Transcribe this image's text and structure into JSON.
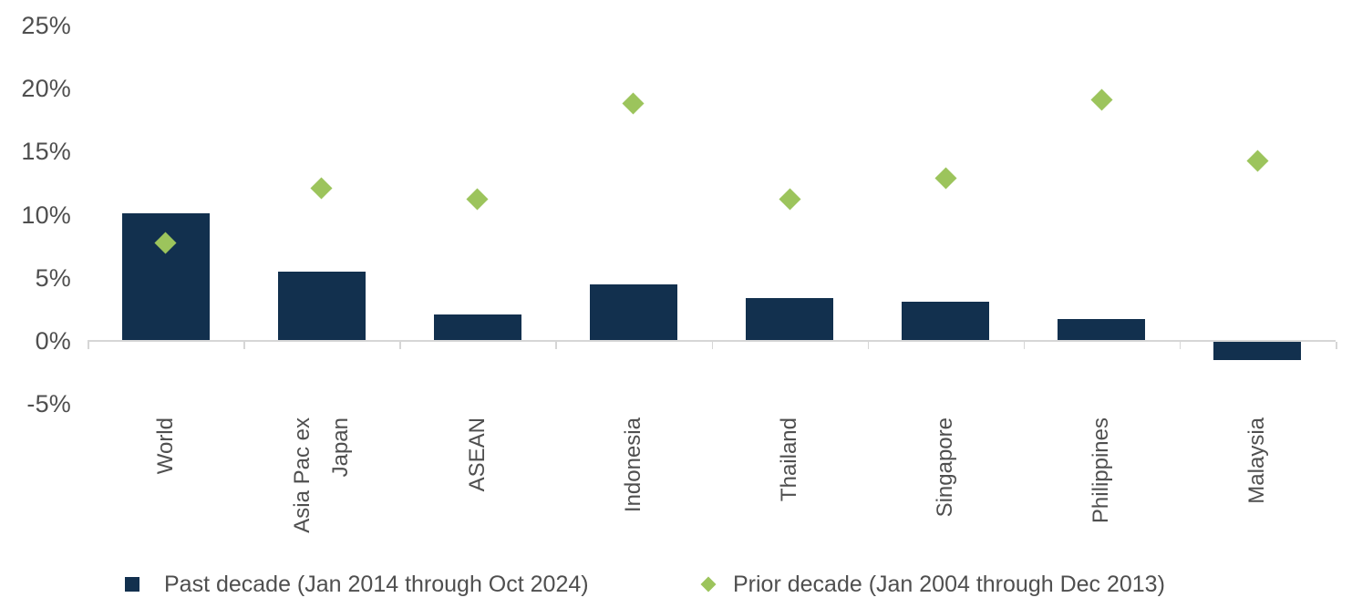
{
  "chart_data": {
    "type": "bar",
    "combo": "bar series + diamond scatter overlay",
    "title": "",
    "categories": [
      "World",
      "Asia Pac ex Japan",
      "ASEAN",
      "Indonesia",
      "Thailand",
      "Singapore",
      "Philippines",
      "Malaysia"
    ],
    "categories_display": [
      [
        "World"
      ],
      [
        "Asia Pac ex",
        "Japan"
      ],
      [
        "ASEAN"
      ],
      [
        "Indonesia"
      ],
      [
        "Thailand"
      ],
      [
        "Singapore"
      ],
      [
        "Philippines"
      ],
      [
        "Malaysia"
      ]
    ],
    "series": [
      {
        "name": "Past decade (Jan 2014 through Oct 2024)",
        "type": "bar",
        "marker": "square",
        "color": "#12304e",
        "values": [
          10.1,
          5.5,
          2.1,
          4.5,
          3.4,
          3.1,
          1.7,
          -1.5
        ]
      },
      {
        "name": "Prior decade (Jan 2004 through Dec 2013)",
        "type": "scatter",
        "marker": "diamond",
        "color": "#9cc45c",
        "values": [
          7.8,
          12.1,
          11.2,
          18.8,
          11.2,
          12.9,
          19.1,
          14.3
        ]
      }
    ],
    "y_axis": {
      "unit": "%",
      "min": -5,
      "max": 25,
      "tick_labels": [
        "25%",
        "20%",
        "15%",
        "10%",
        "5%",
        "0%",
        "-5%"
      ],
      "tick_values": [
        25,
        20,
        15,
        10,
        5,
        0,
        -5
      ]
    },
    "x_axis": {
      "baseline_value": 0,
      "tick_marks_at_category_boundaries": true
    },
    "grid": false,
    "legend_position": "bottom",
    "colors": {
      "axis": "#d6d6d6",
      "text": "#4f4f4f"
    }
  }
}
